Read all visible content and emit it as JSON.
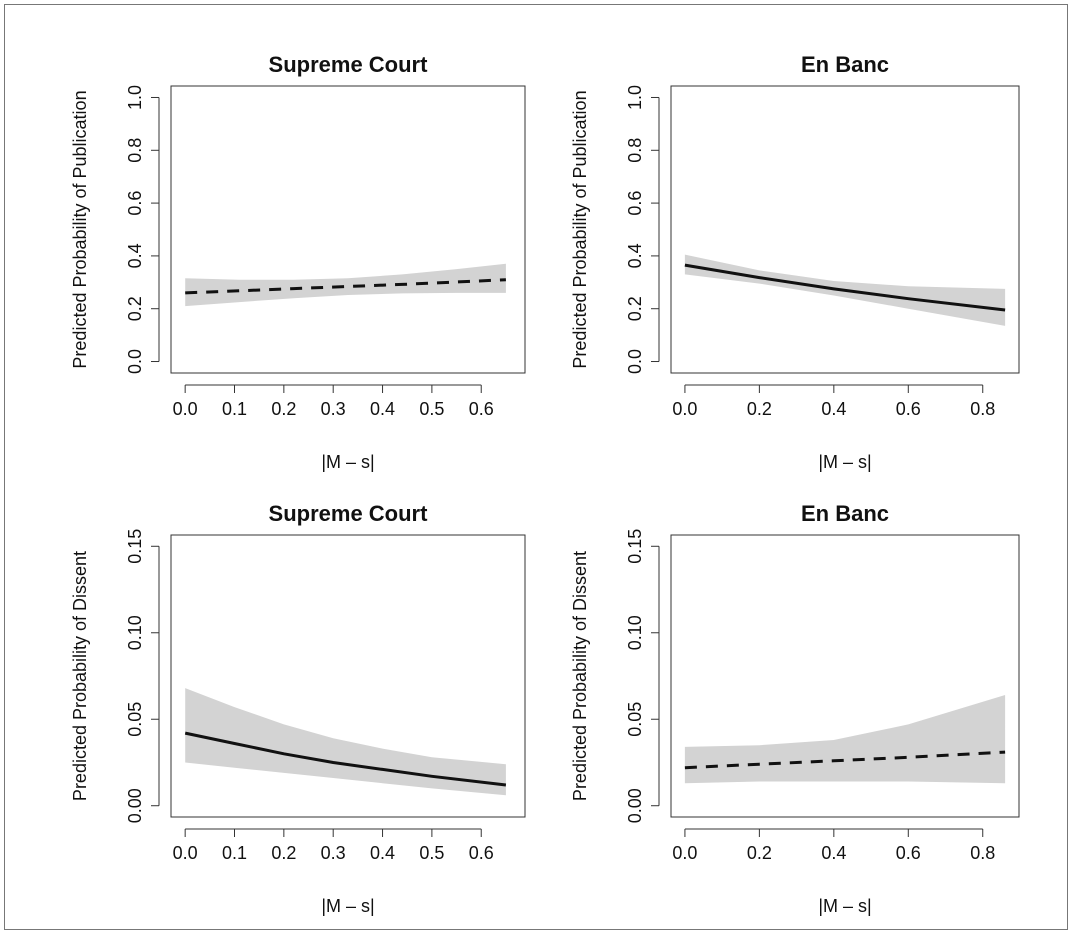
{
  "chart_data": [
    {
      "type": "line",
      "title": "Supreme Court",
      "xlabel": "|M – s|",
      "ylabel": "Predicted Probability of Publication",
      "xlim": [
        0,
        0.66
      ],
      "ylim": [
        0,
        1
      ],
      "x_ticks": [
        "0.0",
        "0.1",
        "0.2",
        "0.3",
        "0.4",
        "0.5",
        "0.6"
      ],
      "y_ticks": [
        "0.0",
        "0.2",
        "0.4",
        "0.6",
        "0.8",
        "1.0"
      ],
      "line_style": "dashed",
      "grid": false,
      "x": [
        0,
        0.11,
        0.22,
        0.33,
        0.44,
        0.55,
        0.65
      ],
      "y": [
        0.26,
        0.268,
        0.276,
        0.284,
        0.292,
        0.301,
        0.31
      ],
      "lower": [
        0.21,
        0.225,
        0.24,
        0.252,
        0.258,
        0.26,
        0.26
      ],
      "upper": [
        0.315,
        0.31,
        0.31,
        0.315,
        0.33,
        0.35,
        0.37
      ]
    },
    {
      "type": "line",
      "title": "En Banc",
      "xlabel": "|M – s|",
      "ylabel": "Predicted Probability of Publication",
      "xlim": [
        0,
        0.86
      ],
      "ylim": [
        0,
        1
      ],
      "x_ticks": [
        "0.0",
        "0.2",
        "0.4",
        "0.6",
        "0.8"
      ],
      "y_ticks": [
        "0.0",
        "0.2",
        "0.4",
        "0.6",
        "0.8",
        "1.0"
      ],
      "line_style": "solid",
      "grid": false,
      "x": [
        0,
        0.2,
        0.4,
        0.6,
        0.86
      ],
      "y": [
        0.365,
        0.318,
        0.275,
        0.238,
        0.195
      ],
      "lower": [
        0.33,
        0.295,
        0.25,
        0.2,
        0.135
      ],
      "upper": [
        0.405,
        0.345,
        0.305,
        0.285,
        0.275
      ]
    },
    {
      "type": "line",
      "title": "Supreme Court",
      "xlabel": "|M – s|",
      "ylabel": "Predicted Probability of Dissent",
      "xlim": [
        0,
        0.66
      ],
      "ylim": [
        0,
        0.15
      ],
      "x_ticks": [
        "0.0",
        "0.1",
        "0.2",
        "0.3",
        "0.4",
        "0.5",
        "0.6"
      ],
      "y_ticks": [
        "0.00",
        "0.05",
        "0.10",
        "0.15"
      ],
      "line_style": "solid",
      "grid": false,
      "x": [
        0,
        0.1,
        0.2,
        0.3,
        0.4,
        0.5,
        0.65
      ],
      "y": [
        0.042,
        0.036,
        0.03,
        0.025,
        0.021,
        0.017,
        0.012
      ],
      "lower": [
        0.025,
        0.022,
        0.019,
        0.016,
        0.013,
        0.01,
        0.006
      ],
      "upper": [
        0.068,
        0.057,
        0.047,
        0.039,
        0.033,
        0.028,
        0.024
      ]
    },
    {
      "type": "line",
      "title": "En Banc",
      "xlabel": "|M – s|",
      "ylabel": "Predicted Probability of Dissent",
      "xlim": [
        0,
        0.86
      ],
      "ylim": [
        0,
        0.15
      ],
      "x_ticks": [
        "0.0",
        "0.2",
        "0.4",
        "0.6",
        "0.8"
      ],
      "y_ticks": [
        "0.00",
        "0.05",
        "0.10",
        "0.15"
      ],
      "line_style": "dashed",
      "grid": false,
      "x": [
        0,
        0.2,
        0.4,
        0.6,
        0.86
      ],
      "y": [
        0.022,
        0.024,
        0.026,
        0.028,
        0.031
      ],
      "lower": [
        0.013,
        0.014,
        0.014,
        0.014,
        0.013
      ],
      "upper": [
        0.034,
        0.035,
        0.038,
        0.047,
        0.064
      ]
    }
  ],
  "colors": {
    "band": "#d3d3d3",
    "line": "#111111",
    "axis": "#333333",
    "frame": "#777777"
  }
}
